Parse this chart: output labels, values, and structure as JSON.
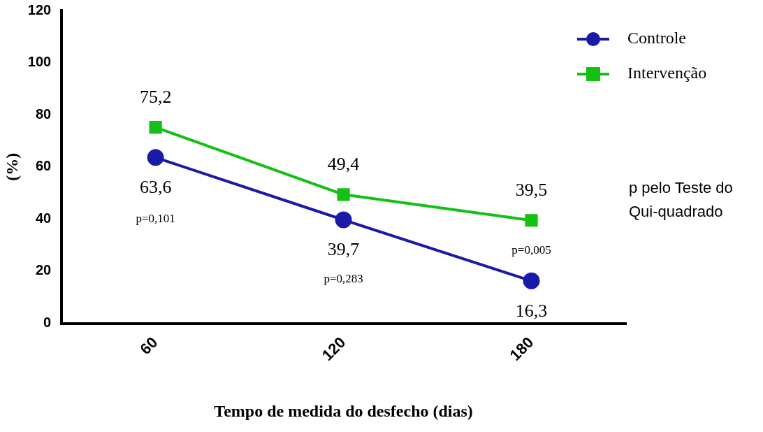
{
  "chart_data": {
    "type": "line",
    "xlabel": "Tempo de medida do desfecho (dias)",
    "ylabel": "(%)",
    "categories": [
      "60",
      "120",
      "180"
    ],
    "series": [
      {
        "name": "Controle",
        "color": "#1a1aa8",
        "values": [
          63.6,
          39.7,
          16.3
        ],
        "marker": "circle",
        "value_labels": [
          "63,6",
          "39,7",
          "16,3"
        ]
      },
      {
        "name": "Intervenção",
        "color": "#14c014",
        "values": [
          75.2,
          49.4,
          39.5
        ],
        "marker": "square",
        "value_labels": [
          "75,2",
          "49,4",
          "39,5"
        ]
      }
    ],
    "ylim": [
      0,
      120
    ],
    "yticks": [
      0,
      20,
      40,
      60,
      80,
      100,
      120
    ],
    "grid": false,
    "legend": "top right",
    "line_style": "solid",
    "annotations": [
      "p=0,101",
      "p=0,283",
      "p=0,005",
      "p pelo Teste do Qui-quadrado"
    ]
  }
}
